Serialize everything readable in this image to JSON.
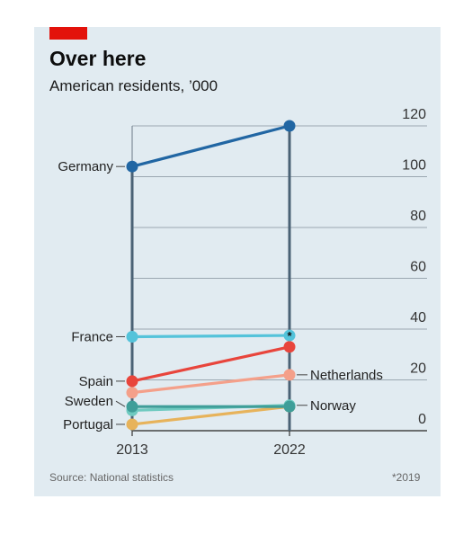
{
  "header": {
    "title": "Over here",
    "subtitle": "American residents, ’000"
  },
  "footer": {
    "source": "Source: National statistics",
    "note": "*2019"
  },
  "colors": {
    "background": "#e1ebf1",
    "accent": "#e3120b",
    "grid": "#9aa7b1",
    "axis": "#555555"
  },
  "chart_data": {
    "type": "line",
    "title": "Over here",
    "subtitle": "American residents, ’000",
    "x": [
      "2013",
      "2022"
    ],
    "ylim": [
      0,
      120
    ],
    "yticks": [
      0,
      20,
      40,
      60,
      80,
      100,
      120
    ],
    "ytick_labels": [
      "0",
      "20",
      "40",
      "60",
      "80",
      "100",
      "120"
    ],
    "grid": true,
    "series": [
      {
        "name": "Germany",
        "values": [
          104,
          120
        ],
        "color": "#2166a3",
        "label_2013": "Germany",
        "label_2022": ""
      },
      {
        "name": "France",
        "values": [
          37,
          37.5
        ],
        "color": "#54c3da",
        "label_2013": "France",
        "label_2022": "",
        "note_2022": "*"
      },
      {
        "name": "Spain",
        "values": [
          19.5,
          33
        ],
        "color": "#e8453c",
        "label_2013": "Spain",
        "label_2022": ""
      },
      {
        "name": "Netherlands",
        "values": [
          15,
          22
        ],
        "color": "#f4a08a",
        "label_2013": "",
        "label_2022": "Netherlands"
      },
      {
        "name": "Sweden",
        "values": [
          9.5,
          9.5
        ],
        "color": "#3f9e99",
        "label_2013": "Sweden",
        "label_2022": ""
      },
      {
        "name": "Norway",
        "values": [
          8,
          10
        ],
        "color": "#6fcac0",
        "label_2013": "",
        "label_2022": "Norway"
      },
      {
        "name": "Portugal",
        "values": [
          2.5,
          9.5
        ],
        "color": "#e7b35b",
        "label_2013": "Portugal",
        "label_2022": ""
      }
    ]
  }
}
